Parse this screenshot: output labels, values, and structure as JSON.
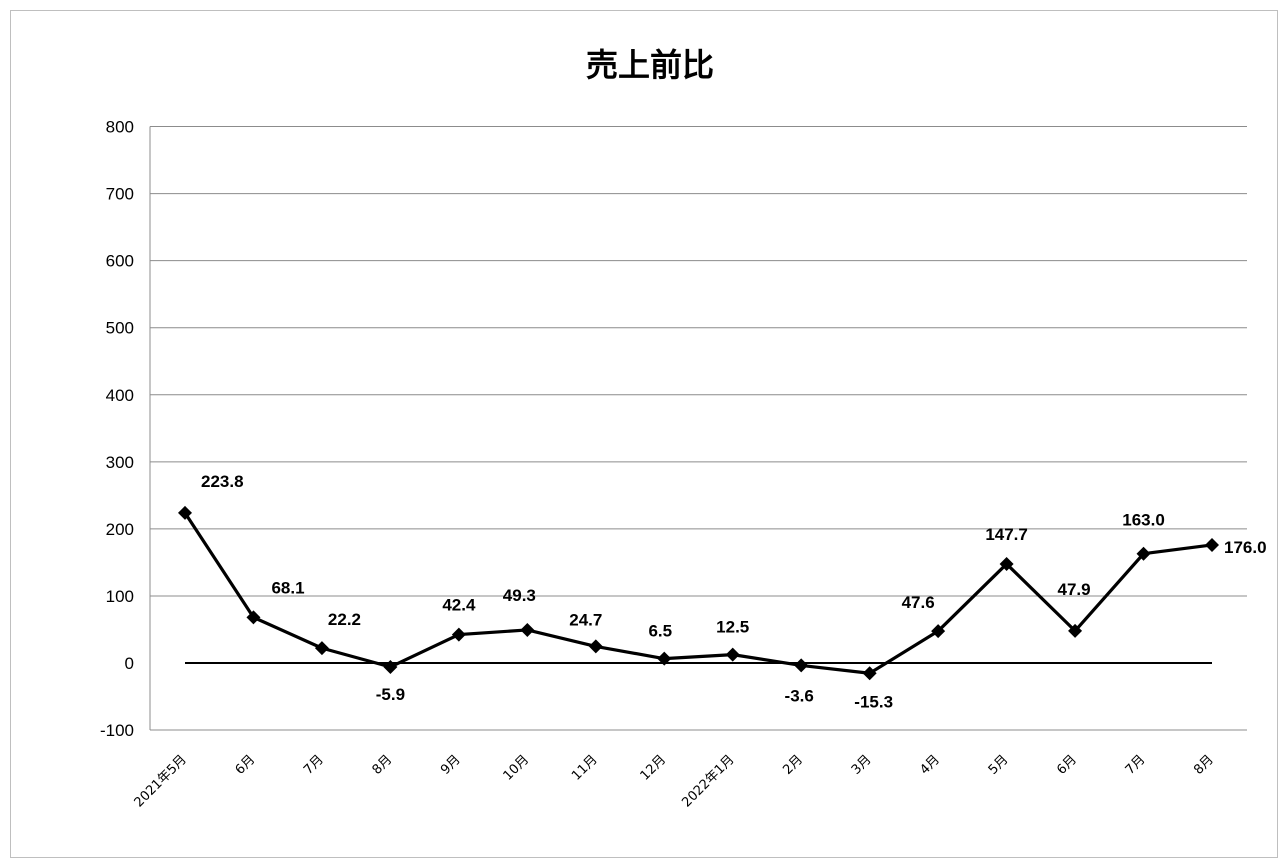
{
  "chart_data": {
    "type": "line",
    "title": "売上前比",
    "categories": [
      "2021年5月",
      "6月",
      "7月",
      "8月",
      "9月",
      "10月",
      "11月",
      "12月",
      "2022年1月",
      "2月",
      "3月",
      "4月",
      "5月",
      "6月",
      "7月",
      "8月"
    ],
    "series": [
      {
        "values": [
          223.8,
          68.1,
          22.2,
          -5.9,
          42.4,
          49.3,
          24.7,
          6.5,
          12.5,
          -3.6,
          -15.3,
          47.6,
          147.7,
          47.9,
          163.0,
          176.0
        ],
        "labels": [
          "223.8",
          "68.1",
          "22.2",
          "-5.9",
          "42.4",
          "49.3",
          "24.7",
          "6.5",
          "12.5",
          "-3.6",
          "-15.3",
          "47.6",
          "147.7",
          "47.9",
          "163.0",
          "176.0"
        ],
        "color": "#000000",
        "marker": "diamond"
      }
    ],
    "yticks": [
      "800",
      "700",
      "600",
      "500",
      "400",
      "300",
      "200",
      "100",
      "0",
      "-100"
    ],
    "ylim": [
      -100,
      800
    ],
    "grid": true,
    "legend": "none"
  }
}
